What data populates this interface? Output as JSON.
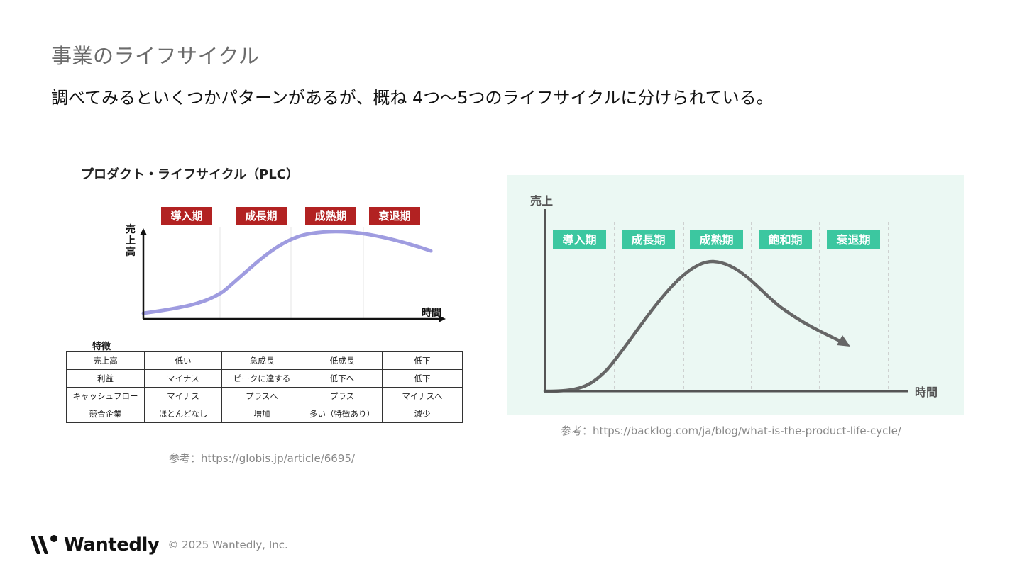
{
  "slide": {
    "title": "事業のライフサイクル",
    "subtitle": "調べてみるといくつかパターンがあるが、概ね 4つ〜5つのライフサイクルに分けられている。"
  },
  "left_figure": {
    "title": "プロダクト・ライフサイクル（PLC）",
    "phases": [
      "導入期",
      "成長期",
      "成熟期",
      "衰退期"
    ],
    "y_label": "売上高",
    "x_label": "時間",
    "features_label": "特徴",
    "table": [
      [
        "売上高",
        "低い",
        "急成長",
        "低成長",
        "低下"
      ],
      [
        "利益",
        "マイナス",
        "ピークに達する",
        "低下へ",
        "低下"
      ],
      [
        "キャッシュフロー",
        "マイナス",
        "プラスへ",
        "プラス",
        "マイナスへ"
      ],
      [
        "競合企業",
        "ほとんどなし",
        "増加",
        "多い（特徴あり）",
        "減少"
      ]
    ],
    "reference": "参考：https://globis.jp/article/6695/",
    "phase_color": "#b22222",
    "curve_color": "#9f9ce0"
  },
  "right_figure": {
    "phases": [
      "導入期",
      "成長期",
      "成熟期",
      "飽和期",
      "衰退期"
    ],
    "y_label": "売上",
    "x_label": "時間",
    "reference": "参考：https://backlog.com/ja/blog/what-is-the-product-life-cycle/",
    "background": "#ebf8f3",
    "phase_color": "#3cc7a0",
    "curve_color": "#666666"
  },
  "footer": {
    "logo_icon": "wantedly-logo-icon",
    "brand": "Wantedly",
    "copyright": "© 2025 Wantedly, Inc."
  }
}
